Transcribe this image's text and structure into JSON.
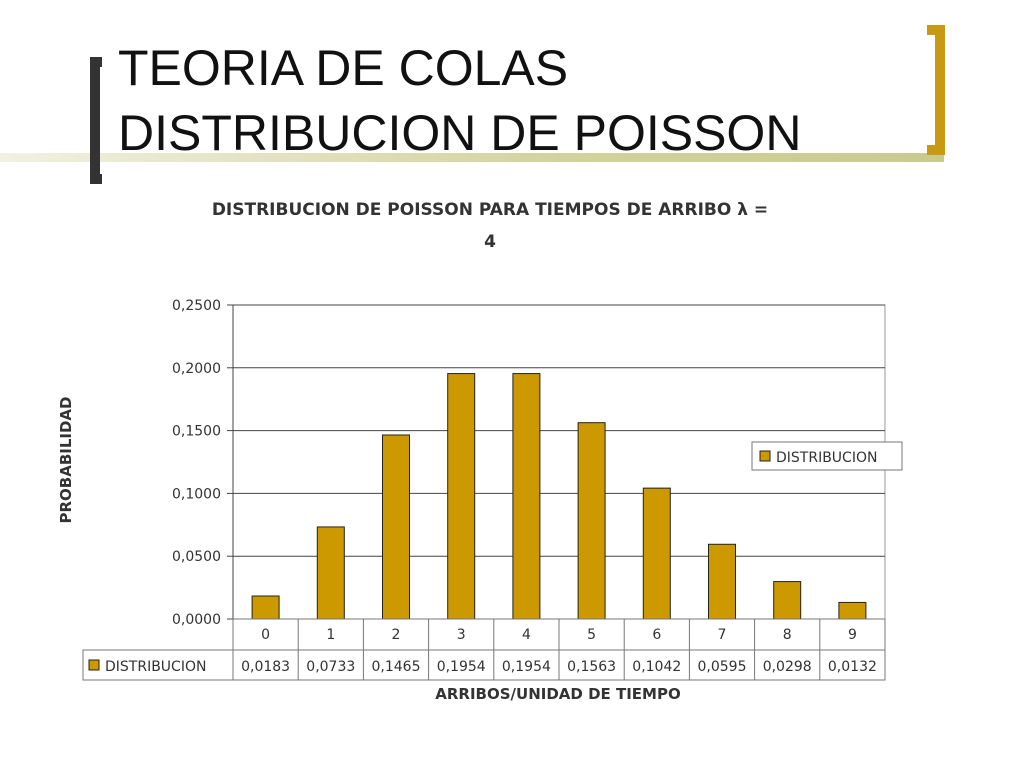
{
  "slide": {
    "title_line1": "TEORIA DE COLAS",
    "title_line2": "DISTRIBUCION DE POISSON",
    "accent_color": "#c89a14"
  },
  "chart_data": {
    "type": "bar",
    "title_line1": "DISTRIBUCION DE POISSON PARA TIEMPOS DE ARRIBO λ =",
    "title_line2": "4",
    "xlabel": "ARRIBOS/UNIDAD DE TIEMPO",
    "ylabel": "PROBABILIDAD",
    "ylim": [
      0,
      0.25
    ],
    "yticks": [
      "0,0000",
      "0,0500",
      "0,1000",
      "0,1500",
      "0,2000",
      "0,2500"
    ],
    "categories": [
      "0",
      "1",
      "2",
      "3",
      "4",
      "5",
      "6",
      "7",
      "8",
      "9"
    ],
    "series": [
      {
        "name": "DISTRIBUCION",
        "color": "#cc9900",
        "values": [
          0.0183,
          0.0733,
          0.1465,
          0.1954,
          0.1954,
          0.1563,
          0.1042,
          0.0595,
          0.0298,
          0.0132
        ],
        "value_labels": [
          "0,0183",
          "0,0733",
          "0,1465",
          "0,1954",
          "0,1954",
          "0,1563",
          "0,1042",
          "0,0595",
          "0,0298",
          "0,0132"
        ]
      }
    ],
    "legend": {
      "label": "DISTRIBUCION",
      "position": "right"
    },
    "grid": true,
    "data_table": true
  }
}
